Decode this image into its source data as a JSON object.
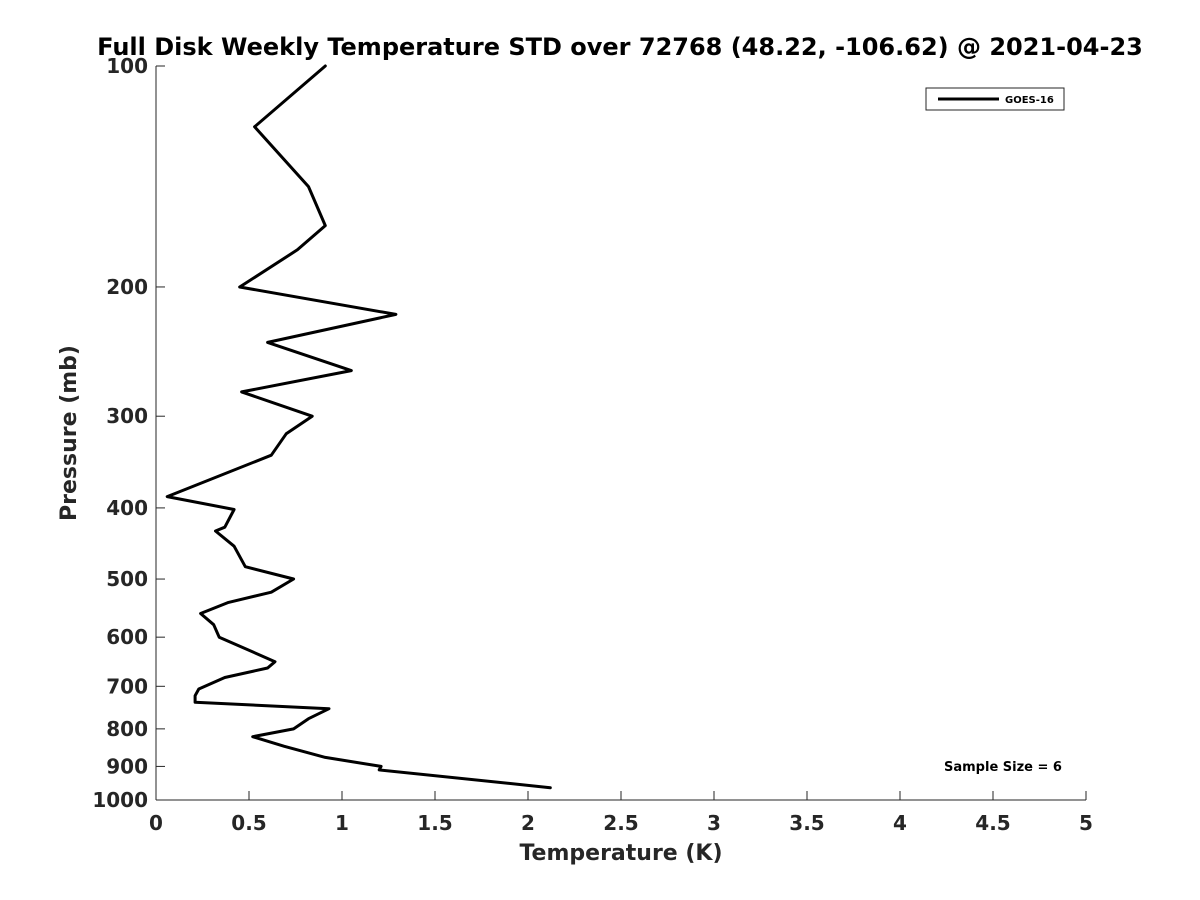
{
  "chart_data": {
    "type": "line",
    "title": "Full Disk Weekly Temperature STD over 72768 (48.22, -106.62) @ 2021-04-23",
    "xlabel": "Temperature (K)",
    "ylabel": "Pressure (mb)",
    "xlim": [
      0,
      5
    ],
    "ylim": [
      100,
      1000
    ],
    "y_scale": "log",
    "y_reversed": true,
    "x_ticks": [
      "0",
      "0.5",
      "1",
      "1.5",
      "2",
      "2.5",
      "3",
      "3.5",
      "4",
      "4.5",
      "5"
    ],
    "y_ticks": [
      "100",
      "200",
      "300",
      "400",
      "500",
      "600",
      "700",
      "800",
      "900",
      "1000"
    ],
    "grid": false,
    "legend_position": "top-right",
    "annotation": "Sample Size = 6",
    "series": [
      {
        "name": "GOES-16",
        "color": "#000000",
        "points": [
          {
            "x": 0.91,
            "p": 100
          },
          {
            "x": 0.53,
            "p": 121
          },
          {
            "x": 0.82,
            "p": 146
          },
          {
            "x": 0.91,
            "p": 165
          },
          {
            "x": 0.76,
            "p": 178
          },
          {
            "x": 0.45,
            "p": 200
          },
          {
            "x": 1.29,
            "p": 218
          },
          {
            "x": 0.6,
            "p": 238
          },
          {
            "x": 1.05,
            "p": 260
          },
          {
            "x": 0.46,
            "p": 278
          },
          {
            "x": 0.84,
            "p": 300
          },
          {
            "x": 0.7,
            "p": 317
          },
          {
            "x": 0.62,
            "p": 339
          },
          {
            "x": 0.06,
            "p": 386
          },
          {
            "x": 0.42,
            "p": 402
          },
          {
            "x": 0.37,
            "p": 425
          },
          {
            "x": 0.32,
            "p": 430
          },
          {
            "x": 0.42,
            "p": 451
          },
          {
            "x": 0.48,
            "p": 481
          },
          {
            "x": 0.74,
            "p": 500
          },
          {
            "x": 0.62,
            "p": 521
          },
          {
            "x": 0.39,
            "p": 538
          },
          {
            "x": 0.24,
            "p": 557
          },
          {
            "x": 0.31,
            "p": 577
          },
          {
            "x": 0.34,
            "p": 600
          },
          {
            "x": 0.64,
            "p": 648
          },
          {
            "x": 0.6,
            "p": 661
          },
          {
            "x": 0.37,
            "p": 681
          },
          {
            "x": 0.23,
            "p": 706
          },
          {
            "x": 0.21,
            "p": 721
          },
          {
            "x": 0.21,
            "p": 736
          },
          {
            "x": 0.93,
            "p": 751
          },
          {
            "x": 0.82,
            "p": 775
          },
          {
            "x": 0.74,
            "p": 800
          },
          {
            "x": 0.52,
            "p": 820
          },
          {
            "x": 0.69,
            "p": 845
          },
          {
            "x": 0.91,
            "p": 875
          },
          {
            "x": 1.21,
            "p": 900
          },
          {
            "x": 1.2,
            "p": 910
          },
          {
            "x": 2.12,
            "p": 962
          }
        ]
      }
    ]
  }
}
